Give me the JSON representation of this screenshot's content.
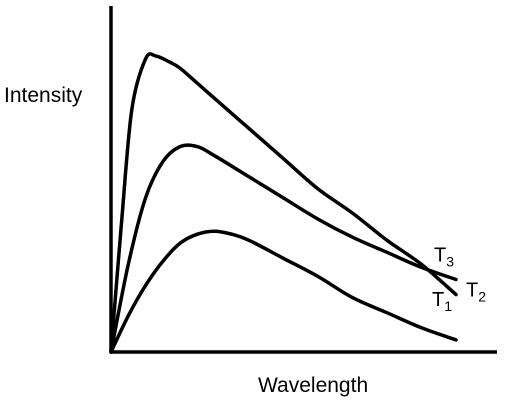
{
  "chart_data": {
    "type": "line",
    "title": "",
    "xlabel": "Wavelength",
    "ylabel": "Intensity",
    "axis_ticks": false,
    "grid": false,
    "xlim": [
      0,
      100
    ],
    "ylim": [
      0,
      100
    ],
    "series": [
      {
        "name": "T",
        "subscript": "3",
        "color": "#000000",
        "x": [
          0,
          3,
          6,
          10,
          13,
          17,
          20,
          25,
          30,
          40,
          50,
          60,
          70,
          80,
          90,
          100
        ],
        "y": [
          0,
          42,
          80,
          97,
          98,
          96,
          94,
          89,
          84,
          74,
          64,
          54,
          46,
          37,
          29,
          19
        ]
      },
      {
        "name": "T",
        "subscript": "2",
        "color": "#000000",
        "x": [
          0,
          5,
          10,
          15,
          20,
          25,
          30,
          40,
          50,
          60,
          70,
          80,
          90,
          100
        ],
        "y": [
          0,
          29,
          51,
          63,
          68,
          68,
          65,
          58,
          51,
          44,
          38,
          33,
          28,
          24
        ]
      },
      {
        "name": "T",
        "subscript": "1",
        "color": "#000000",
        "x": [
          0,
          5,
          10,
          15,
          20,
          25,
          30,
          35,
          40,
          50,
          60,
          70,
          80,
          90,
          100
        ],
        "y": [
          0,
          12,
          22,
          30,
          36,
          39,
          40,
          39,
          37,
          31,
          25,
          18,
          13,
          8,
          4
        ]
      }
    ]
  }
}
